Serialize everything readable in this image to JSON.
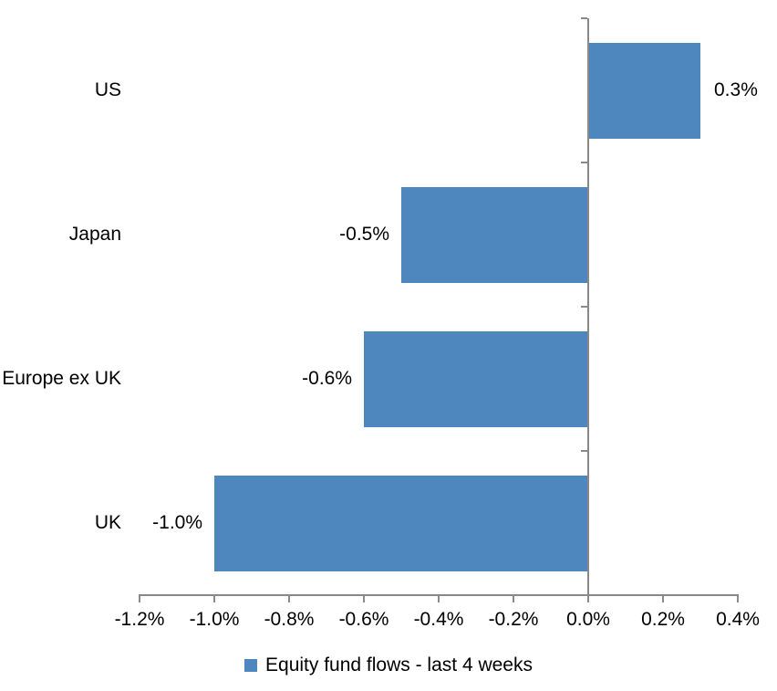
{
  "chart_data": {
    "type": "bar",
    "orientation": "horizontal",
    "title": "",
    "categories": [
      "US",
      "Japan",
      "Europe ex UK",
      "UK"
    ],
    "values": [
      0.3,
      -0.5,
      -0.6,
      -1.0
    ],
    "value_labels": [
      "0.3%",
      "-0.5%",
      "-0.6%",
      "-1.0%"
    ],
    "series_name": "Equity fund flows - last 4 weeks",
    "xlim": [
      -1.2,
      0.4
    ],
    "x_ticks": [
      -1.2,
      -1.0,
      -0.8,
      -0.6,
      -0.4,
      -0.2,
      0.0,
      0.2,
      0.4
    ],
    "x_tick_labels": [
      "-1.2%",
      "-1.0%",
      "-0.8%",
      "-0.6%",
      "-0.4%",
      "-0.2%",
      "0.0%",
      "0.2%",
      "0.4%"
    ],
    "grid": false,
    "legend_position": "bottom",
    "colors": {
      "bar": "#4E87BE",
      "axis": "#898989",
      "text": "#000000",
      "background": "#FFFFFF"
    }
  }
}
